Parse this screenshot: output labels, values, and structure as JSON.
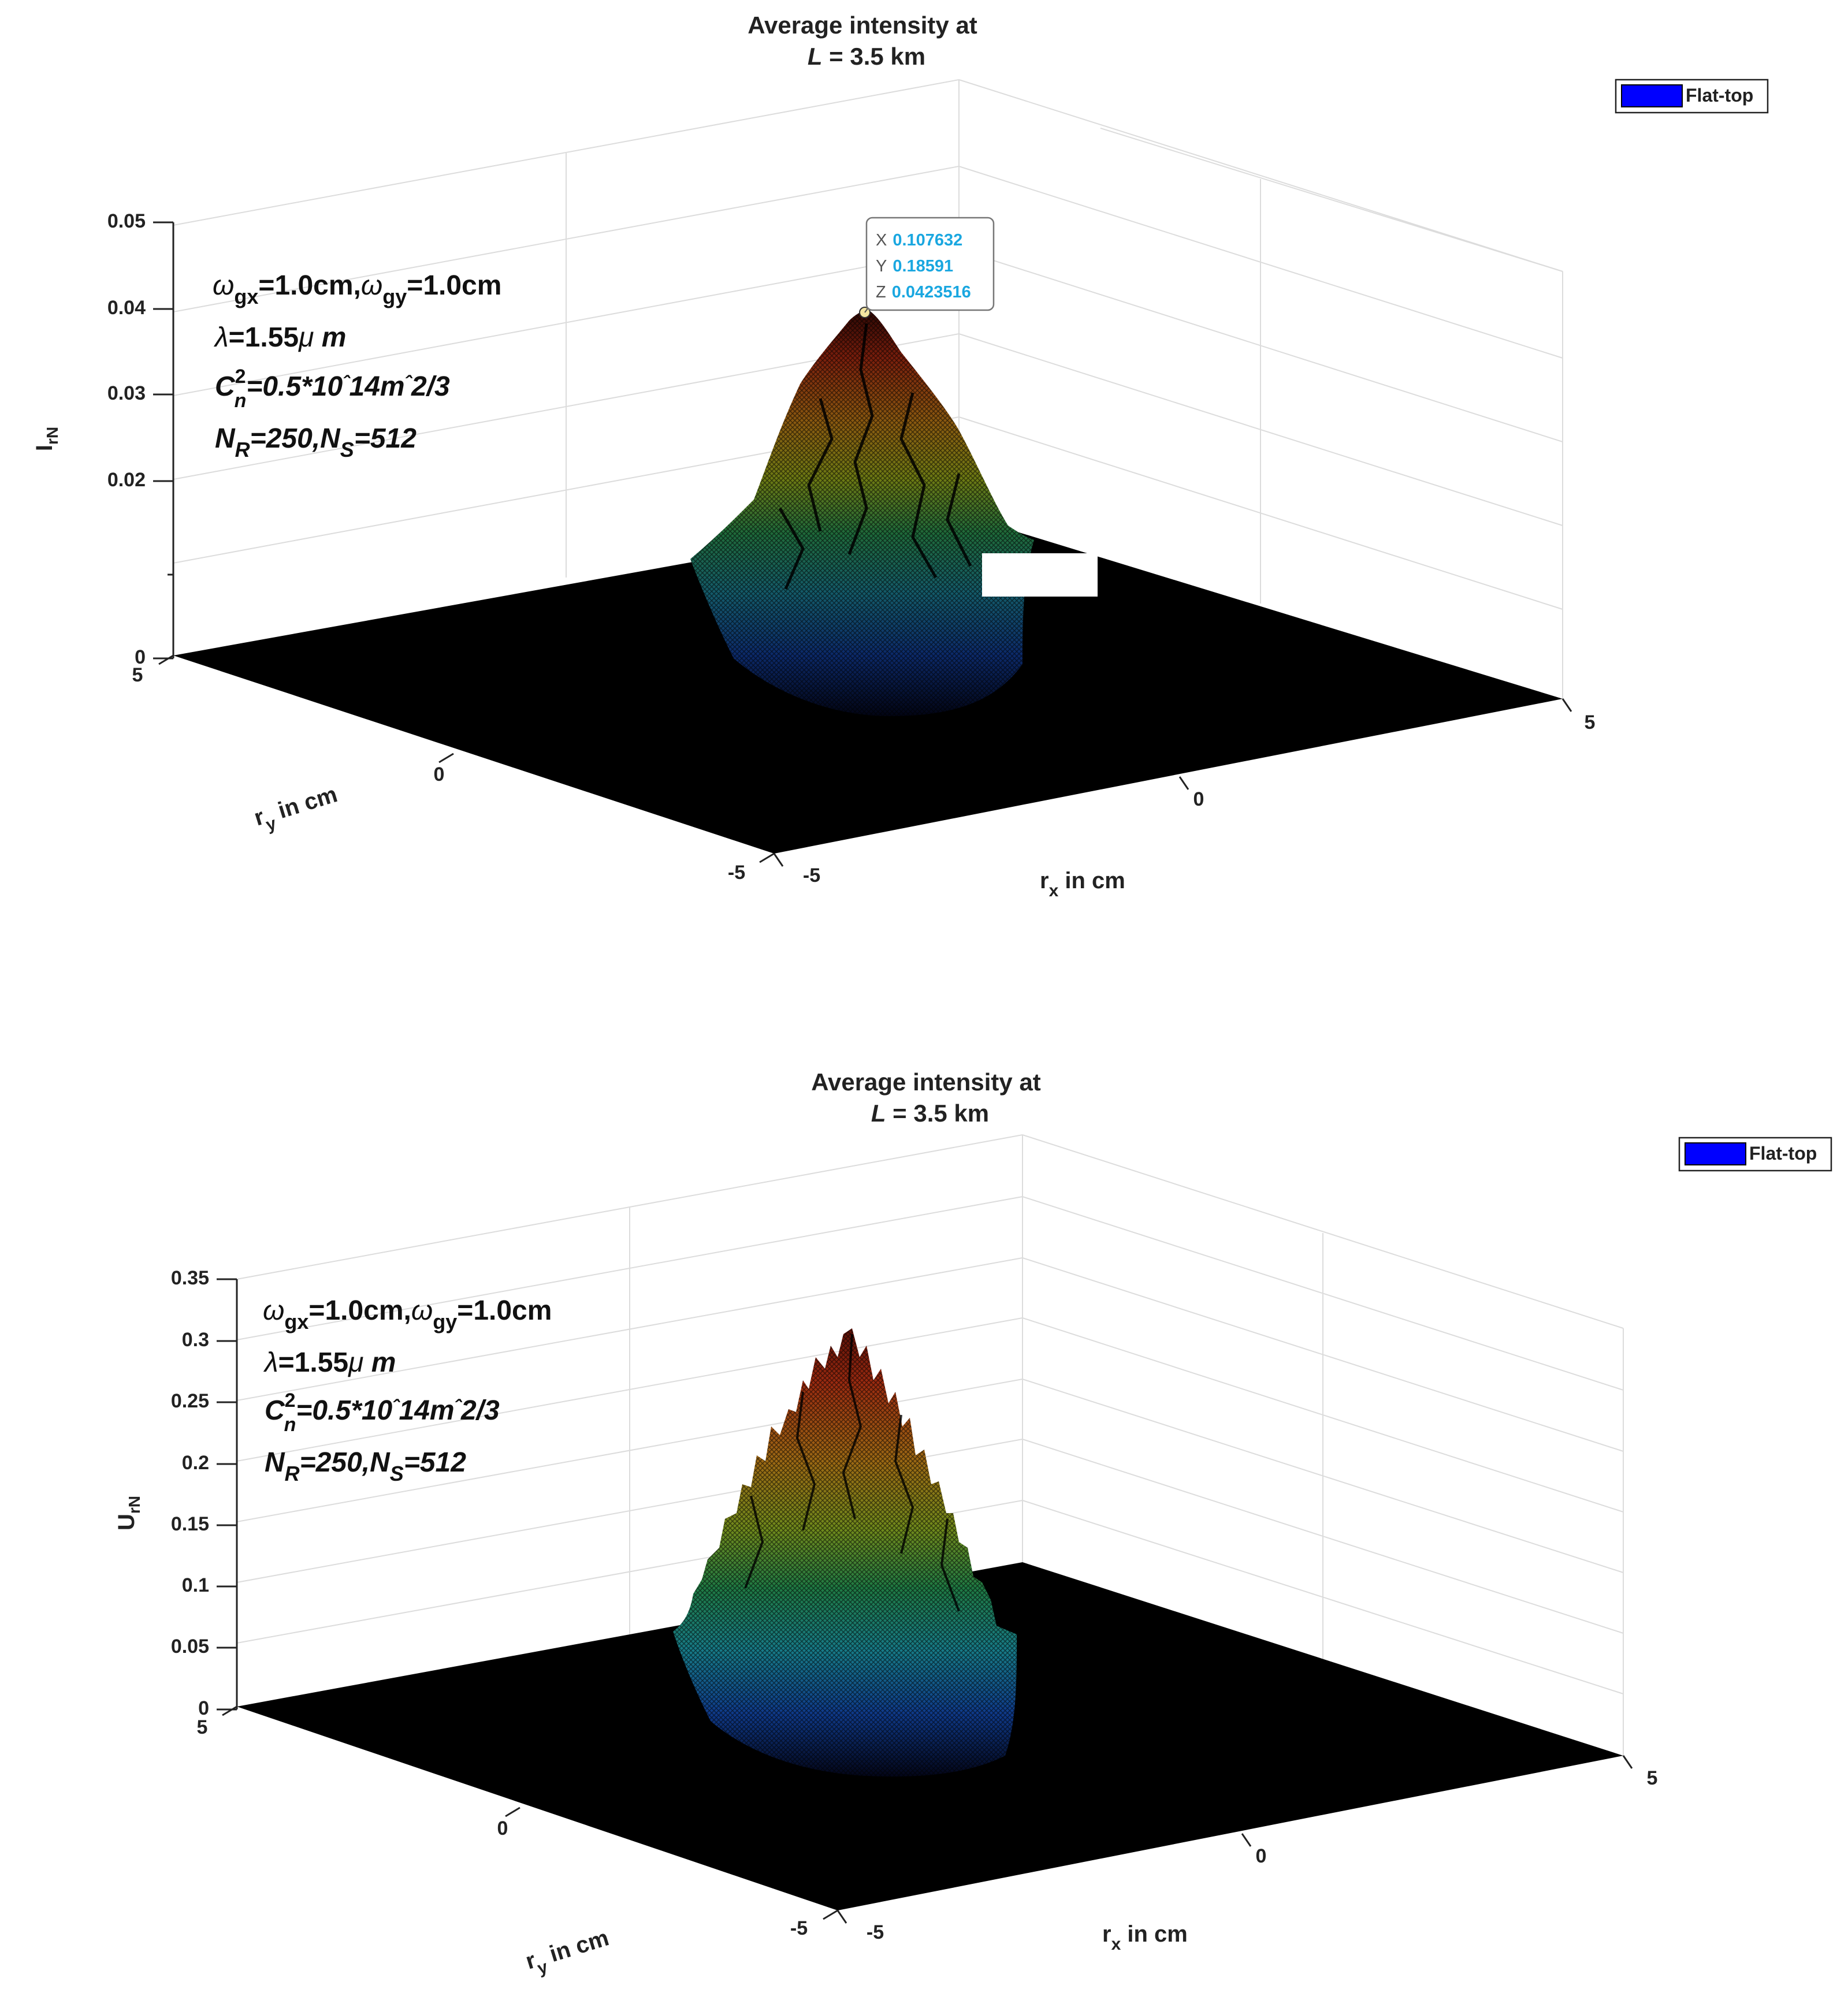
{
  "charts": [
    {
      "type": "surface",
      "title_line1": "Average intensity at",
      "title_line2_italic": "L",
      "title_line2_rest": " = 3.5 km",
      "legend": "Flat-top",
      "legend_color": "#0000ff",
      "xlabel": "r",
      "xlabel_sub": "x",
      "xlabel_rest": " in cm",
      "ylabel": "r",
      "ylabel_sub": "y",
      "ylabel_rest": " in cm",
      "zlabel": "I",
      "zlabel_sub": "rN",
      "x_ticks": [
        "-5",
        "0",
        "5"
      ],
      "y_ticks": [
        "5",
        "0",
        "-5"
      ],
      "z_ticks": [
        "0",
        "0.02",
        "0.03",
        "0.04",
        "0.05"
      ],
      "zlim": [
        0,
        0.05
      ],
      "annotation": {
        "l1a": "ω",
        "l1b": "gx",
        "l1c": "=1.0cm,",
        "l1d": "ω",
        "l1e": "gy",
        "l1f": "=1.0cm",
        "l2a": "λ",
        "l2b": "=1.55",
        "l2c": "μ",
        "l2d": " m",
        "l3a": "C",
        "l3sup": "2",
        "l3sub": "n",
        "l3b": "=0.5*10",
        "l3c": "ˆ",
        "l3d": "14m",
        "l3e": "ˆ",
        "l3f": "2/3",
        "l4a": "N",
        "l4b": "R",
        "l4c": "=250,N",
        "l4d": "S",
        "l4e": "=512"
      },
      "datatip": {
        "x_label": "X",
        "x": "0.107632",
        "y_label": "Y",
        "y": "0.18591",
        "z_label": "Z",
        "z": "0.0423516"
      },
      "peak": {
        "x": 0.107632,
        "y": 0.18591,
        "z": 0.0423516
      }
    },
    {
      "type": "surface",
      "title_line1": "Average intensity at",
      "title_line2_italic": "L",
      "title_line2_rest": " = 3.5 km",
      "legend": "Flat-top",
      "legend_color": "#0000ff",
      "xlabel": "r",
      "xlabel_sub": "x",
      "xlabel_rest": " in cm",
      "ylabel": "r",
      "ylabel_sub": "y",
      "ylabel_rest": " in cm",
      "zlabel": "U",
      "zlabel_sub": "rN",
      "x_ticks": [
        "-5",
        "0",
        "5"
      ],
      "y_ticks": [
        "5",
        "0",
        "-5"
      ],
      "z_ticks": [
        "0",
        "0.05",
        "0.1",
        "0.15",
        "0.2",
        "0.25",
        "0.3",
        "0.35"
      ],
      "zlim": [
        0,
        0.35
      ],
      "annotation": {
        "l1a": "ω",
        "l1b": "gx",
        "l1c": "=1.0cm,",
        "l1d": "ω",
        "l1e": "gy",
        "l1f": "=1.0cm",
        "l2a": "λ",
        "l2b": "=1.55",
        "l2c": "μ",
        "l2d": " m",
        "l3a": "C",
        "l3sup": "2",
        "l3sub": "n",
        "l3b": "=0.5*10",
        "l3c": "ˆ",
        "l3d": "14m",
        "l3e": "ˆ",
        "l3f": "2/3",
        "l4a": "N",
        "l4b": "R",
        "l4c": "=250,N",
        "l4d": "S",
        "l4e": "=512"
      },
      "peak": {
        "z": 0.31
      }
    }
  ]
}
